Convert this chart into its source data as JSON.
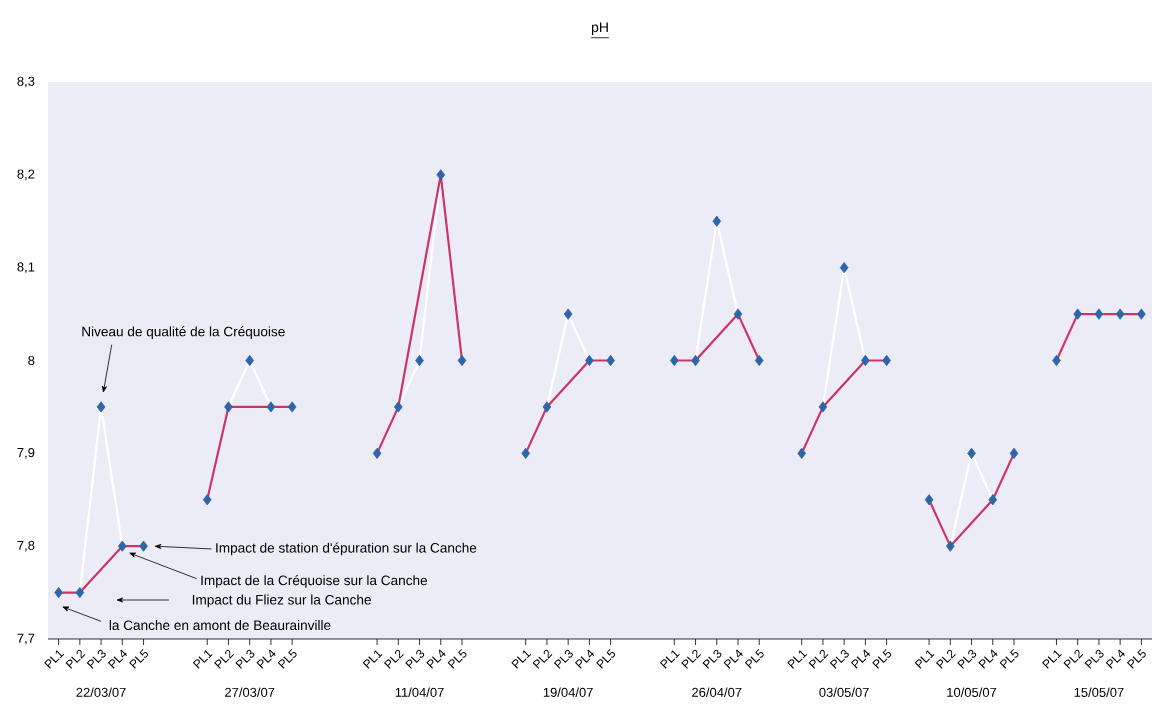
{
  "chart_data": {
    "type": "line",
    "title": "pH",
    "categories": [
      "PL1",
      "PL2",
      "PL3",
      "PL4",
      "PL5",
      null,
      null,
      "PL1",
      "PL2",
      "PL3",
      "PL4",
      "PL5",
      null,
      null,
      null,
      "PL1",
      "PL2",
      "PL3",
      "PL4",
      "PL5",
      null,
      null,
      "PL1",
      "PL2",
      "PL3",
      "PL4",
      "PL5",
      null,
      null,
      "PL1",
      "PL2",
      "PL3",
      "PL4",
      "PL5",
      null,
      "PL1",
      "PL2",
      "PL3",
      "PL4",
      "PL5",
      null,
      "PL1",
      "PL2",
      "PL3",
      "PL4",
      "PL5",
      null,
      "PL1",
      "PL2",
      "PL3",
      "PL4",
      "PL5"
    ],
    "ylim": [
      7.7,
      8.3
    ],
    "yticks": [
      {
        "value": 7.7,
        "label": "7,7"
      },
      {
        "value": 7.8,
        "label": "7,8"
      },
      {
        "value": 7.9,
        "label": "7,9"
      },
      8,
      {
        "value": 8.1,
        "label": "8,1"
      },
      {
        "value": 8.2,
        "label": "8,2"
      },
      {
        "value": 8.3,
        "label": "8,3"
      }
    ],
    "series": [
      {
        "color": "#ffffff",
        "marker": "none",
        "values": [
          7.75,
          7.75,
          7.95,
          7.8,
          7.8,
          null,
          null,
          7.85,
          7.95,
          8.0,
          7.95,
          7.95,
          null,
          null,
          null,
          7.9,
          7.95,
          8.0,
          8.2,
          8.0,
          null,
          null,
          7.9,
          7.95,
          8.05,
          8.0,
          8.0,
          null,
          null,
          8.0,
          8.0,
          8.15,
          8.05,
          8.0,
          null,
          7.9,
          7.95,
          8.1,
          8.0,
          8.0,
          null,
          7.85,
          7.8,
          7.9,
          7.85,
          7.9,
          null,
          8.0,
          8.05,
          8.05,
          8.05,
          8.05
        ]
      },
      {
        "color": "#cc3366",
        "marker": "none",
        "values": [
          7.75,
          7.75,
          null,
          7.8,
          7.8,
          null,
          null,
          7.85,
          7.95,
          null,
          7.95,
          7.95,
          null,
          null,
          null,
          7.9,
          7.95,
          null,
          8.2,
          8.0,
          null,
          null,
          7.9,
          7.95,
          null,
          8.0,
          8.0,
          null,
          null,
          8.0,
          8.0,
          null,
          8.05,
          8.0,
          null,
          7.9,
          7.95,
          null,
          8.0,
          8.0,
          null,
          7.85,
          7.8,
          null,
          7.85,
          7.9,
          null,
          8.0,
          8.05,
          null,
          8.05,
          8.05
        ]
      },
      {
        "type": "scatter",
        "color": "#2e64a8",
        "marker": "diamond",
        "values": [
          7.75,
          7.75,
          7.95,
          7.8,
          7.8,
          null,
          null,
          7.85,
          7.95,
          8.0,
          7.95,
          7.95,
          null,
          null,
          null,
          7.9,
          7.95,
          8.0,
          8.2,
          8.0,
          null,
          null,
          7.9,
          7.95,
          8.05,
          8.0,
          8.0,
          null,
          null,
          8.0,
          8.0,
          8.15,
          8.05,
          8.0,
          null,
          7.9,
          7.95,
          8.1,
          8.0,
          8.0,
          null,
          7.85,
          7.8,
          7.9,
          7.85,
          7.9,
          null,
          8.0,
          8.05,
          8.05,
          8.05,
          8.05
        ]
      }
    ],
    "annotations": [
      "Niveau de qualité de la Créquoise",
      "Impact de station d'épuration sur la Canche",
      "Impact de la Créquoise sur la Canche",
      "Impact du Fliez sur la Canche",
      "la Canche en amont de Beaurainville",
      "22/03/07",
      "27/03/07",
      "11/04/07",
      "19/04/07",
      "26/04/07",
      "03/05/07",
      "10/05/07",
      "15/05/07"
    ]
  }
}
